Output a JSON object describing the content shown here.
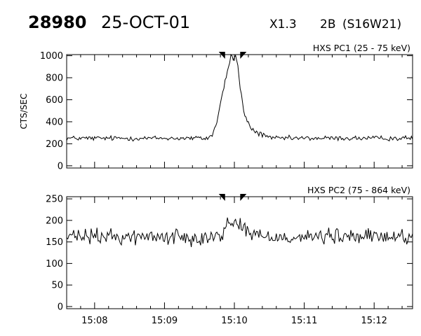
{
  "header": {
    "event_id": "28980",
    "date": "25-OCT-01",
    "goes_class": "X1.3",
    "optical_class": "2B",
    "location": "(S16W21)"
  },
  "chart_data": [
    {
      "type": "line",
      "series": [
        {
          "name": "HXS PC1 (25 - 75 keV)"
        }
      ],
      "ylabel": "CTS/SEC",
      "ylim": [
        -20,
        1010
      ],
      "yticks": [
        0,
        200,
        400,
        600,
        800,
        1000
      ],
      "ytick_labels": [
        "0",
        "200",
        "400",
        "600",
        "800",
        "1000"
      ],
      "xlim": [
        "15:07:36",
        "15:12:33"
      ],
      "xticks": [
        "15:08",
        "15:09",
        "15:10",
        "15:11",
        "15:12"
      ],
      "peak_markers": [
        "15:09:52",
        "15:10:05"
      ],
      "baseline": 250,
      "noise": 22,
      "peak_series": [
        [
          "15:09:38",
          260
        ],
        [
          "15:09:42",
          300
        ],
        [
          "15:09:45",
          400
        ],
        [
          "15:09:48",
          560
        ],
        [
          "15:09:50",
          680
        ],
        [
          "15:09:52",
          760
        ],
        [
          "15:09:55",
          900
        ],
        [
          "15:09:57",
          1010
        ],
        [
          "15:09:59",
          960
        ],
        [
          "15:10:01",
          1010
        ],
        [
          "15:10:03",
          900
        ],
        [
          "15:10:05",
          700
        ],
        [
          "15:10:08",
          500
        ],
        [
          "15:10:12",
          380
        ],
        [
          "15:10:16",
          320
        ],
        [
          "15:10:22",
          290
        ],
        [
          "15:10:30",
          270
        ]
      ]
    },
    {
      "type": "line",
      "series": [
        {
          "name": "HXS PC2 (75 - 864 keV)"
        }
      ],
      "ylabel": "",
      "ylim": [
        -5,
        255
      ],
      "yticks": [
        0,
        50,
        100,
        150,
        200,
        250
      ],
      "ytick_labels": [
        "0",
        "50",
        "100",
        "150",
        "200",
        "250"
      ],
      "xlim": [
        "15:07:36",
        "15:12:33"
      ],
      "xticks": [
        "15:08",
        "15:09",
        "15:10",
        "15:11",
        "15:12"
      ],
      "xtick_labels": [
        "15:08",
        "15:09",
        "15:10",
        "15:11",
        "15:12"
      ],
      "peak_markers": [
        "15:09:52",
        "15:10:05"
      ],
      "baseline": 162,
      "noise": 18,
      "peak_series": [
        [
          "15:09:50",
          175
        ],
        [
          "15:09:55",
          195
        ],
        [
          "15:10:00",
          200
        ],
        [
          "15:10:05",
          190
        ],
        [
          "15:10:12",
          175
        ],
        [
          "15:10:20",
          165
        ]
      ]
    }
  ]
}
